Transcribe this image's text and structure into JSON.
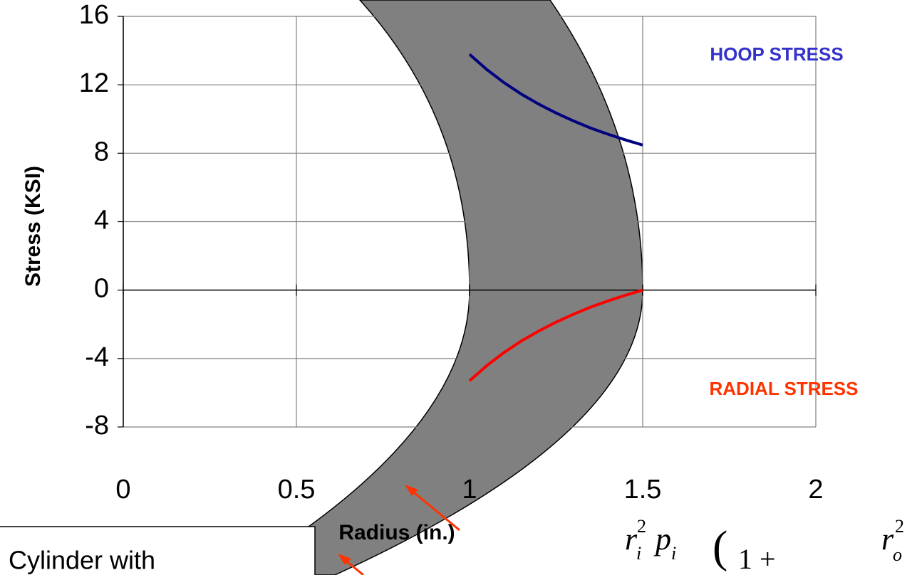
{
  "chart_data": {
    "type": "line",
    "x": [
      1,
      1.05,
      1.1,
      1.15,
      1.2,
      1.25,
      1.3,
      1.35,
      1.4,
      1.45,
      1.5
    ],
    "series": [
      {
        "name": "HOOP STRESS",
        "color": "#000080",
        "label_color": "#3333cc",
        "values": [
          13.78,
          12.89,
          12.12,
          11.45,
          10.87,
          10.35,
          9.89,
          9.47,
          9.11,
          8.78,
          8.48
        ]
      },
      {
        "name": "RADIAL STRESS",
        "color": "#ff0000",
        "label_color": "#ff3300",
        "values": [
          -5.3,
          -4.41,
          -3.64,
          -2.97,
          -2.39,
          -1.87,
          -1.41,
          -0.99,
          -0.63,
          -0.3,
          0
        ]
      }
    ],
    "xlim": [
      0,
      2
    ],
    "xticks": [
      0,
      0.5,
      1,
      1.5,
      2
    ],
    "ylim": [
      -8,
      16
    ],
    "yticks": [
      -8,
      -4,
      0,
      4,
      8,
      12,
      16
    ],
    "grid": true,
    "xlabel": "Radius  (in.)",
    "ylabel": "Stress  (KSI)",
    "box_text": "l Cylinder with",
    "formula_parts": [
      "r",
      "i",
      "2",
      "p",
      "i",
      "(",
      "1 +",
      "r",
      "o",
      "2"
    ]
  }
}
